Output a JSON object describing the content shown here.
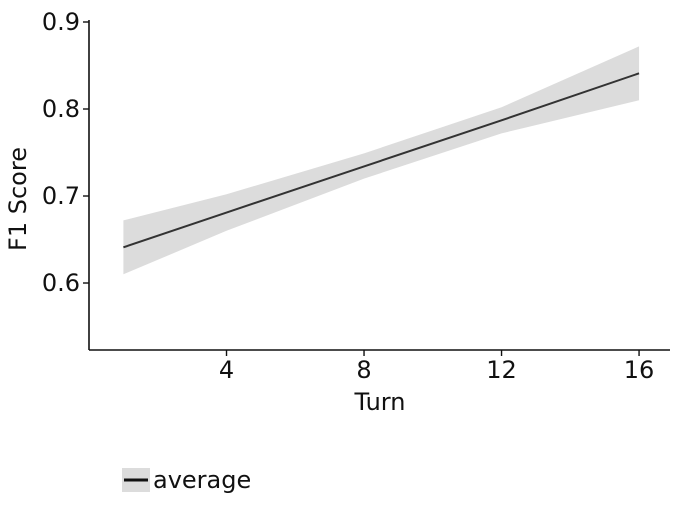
{
  "chart_data": {
    "type": "line",
    "title": "",
    "xlabel": "Turn",
    "ylabel": "F1 Score",
    "xlim": [
      0,
      16.9
    ],
    "ylim": [
      0.523,
      0.9
    ],
    "xticks": [
      4,
      8,
      12,
      16
    ],
    "xtick_labels": [
      "4",
      "8",
      "12",
      "16"
    ],
    "yticks": [
      0.6,
      0.7,
      0.8,
      0.9
    ],
    "ytick_labels": [
      "0.6",
      "0.7",
      "0.8",
      "0.9"
    ],
    "grid": false,
    "legend_position": "bottom-left",
    "series": [
      {
        "name": "average",
        "color": "#333333",
        "band_color": "#dcdcdc",
        "x": [
          1,
          4,
          8,
          12,
          16
        ],
        "y": [
          0.641,
          0.681,
          0.734,
          0.787,
          0.841
        ],
        "lower": [
          0.61,
          0.66,
          0.72,
          0.772,
          0.81
        ],
        "upper": [
          0.672,
          0.702,
          0.749,
          0.802,
          0.872
        ]
      }
    ]
  }
}
